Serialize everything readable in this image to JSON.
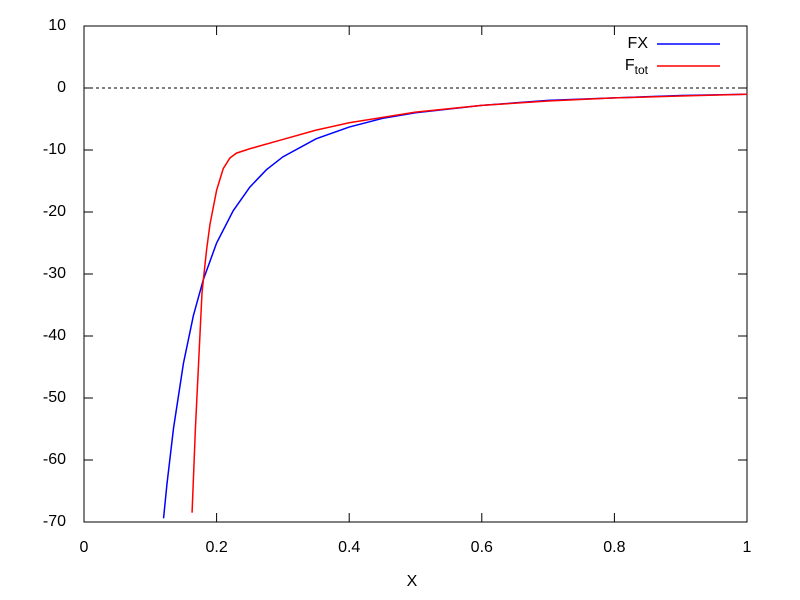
{
  "chart_data": {
    "type": "line",
    "x_label": "X",
    "xlim": [
      0,
      1
    ],
    "xticks": [
      0,
      0.2,
      0.4,
      0.6,
      0.8,
      1
    ],
    "ylim": [
      -70,
      10
    ],
    "yticks": [
      10,
      0,
      -10,
      -20,
      -30,
      -40,
      -50,
      -60,
      -70
    ],
    "zero_axis": true,
    "legend": "upper right",
    "series": [
      {
        "name": "FX",
        "color": "#0000ff",
        "x": [
          0.12,
          0.125,
          0.135,
          0.15,
          0.165,
          0.18,
          0.2,
          0.225,
          0.25,
          0.275,
          0.3,
          0.35,
          0.4,
          0.45,
          0.5,
          0.6,
          0.7,
          0.8,
          0.9,
          1.0
        ],
        "values": [
          -69.4,
          -64,
          -54.9,
          -44.4,
          -36.7,
          -30.9,
          -25,
          -19.8,
          -16,
          -13.2,
          -11.1,
          -8.2,
          -6.3,
          -4.9,
          -4,
          -2.8,
          -2,
          -1.6,
          -1.2,
          -1
        ]
      },
      {
        "name": "F",
        "name_sub": "tot",
        "color": "#ff0000",
        "x": [
          0.163,
          0.168,
          0.173,
          0.178,
          0.185,
          0.19,
          0.2,
          0.21,
          0.22,
          0.23,
          0.25,
          0.3,
          0.35,
          0.4,
          0.5,
          0.6,
          0.7,
          0.8,
          0.9,
          1.0
        ],
        "values": [
          -68.5,
          -55,
          -44,
          -33,
          -26,
          -22,
          -16.5,
          -13,
          -11.3,
          -10.5,
          -9.8,
          -8.3,
          -6.8,
          -5.6,
          -3.9,
          -2.8,
          -2.1,
          -1.6,
          -1.3,
          -1.0
        ]
      }
    ]
  }
}
